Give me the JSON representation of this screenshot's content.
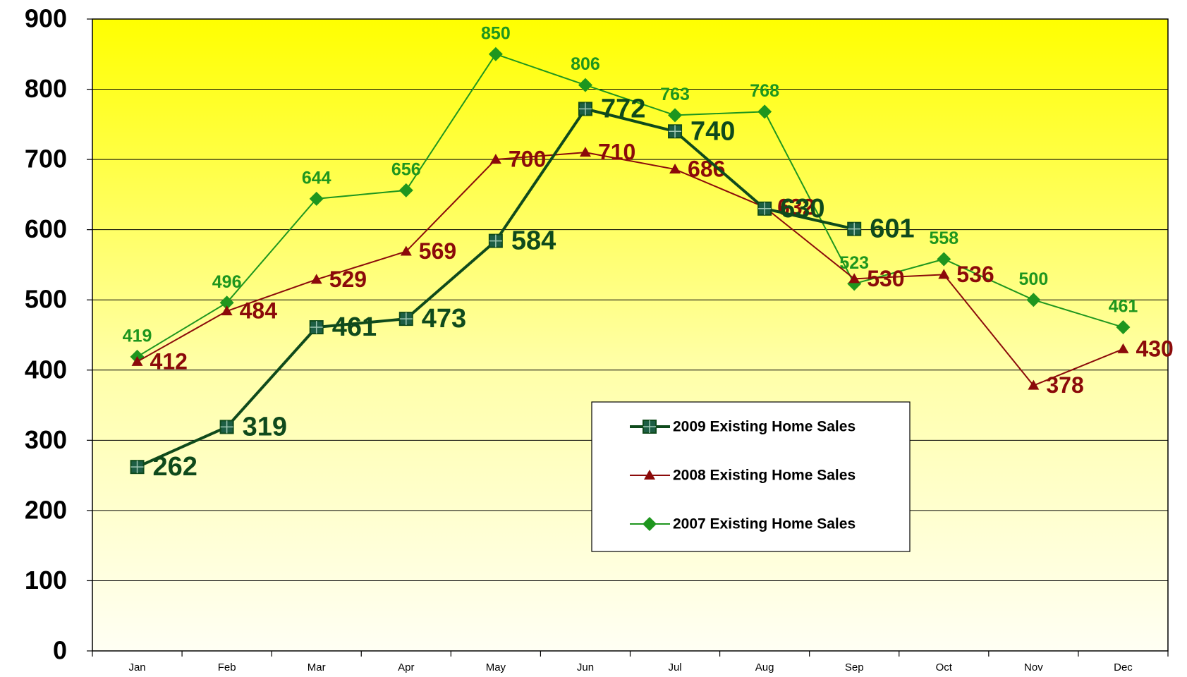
{
  "chart_data": {
    "type": "line",
    "categories": [
      "Jan",
      "Feb",
      "Mar",
      "Apr",
      "May",
      "Jun",
      "Jul",
      "Aug",
      "Sep",
      "Oct",
      "Nov",
      "Dec"
    ],
    "series": [
      {
        "name": "2009 Existing Home Sales",
        "color": "#0f4a1c",
        "marker": "square",
        "values": [
          262,
          319,
          461,
          473,
          584,
          772,
          740,
          630,
          601,
          null,
          null,
          null
        ]
      },
      {
        "name": "2008 Existing Home Sales",
        "color": "#8b0a0a",
        "marker": "triangle",
        "values": [
          412,
          484,
          529,
          569,
          700,
          710,
          686,
          632,
          530,
          536,
          378,
          430
        ]
      },
      {
        "name": "2007 Existing Home Sales",
        "color": "#1e961e",
        "marker": "diamond",
        "values": [
          419,
          496,
          644,
          656,
          850,
          806,
          763,
          768,
          523,
          558,
          500,
          461
        ]
      }
    ],
    "ylim": [
      0,
      900
    ],
    "yticks": [
      0,
      100,
      200,
      300,
      400,
      500,
      600,
      700,
      800,
      900
    ],
    "grid": true
  }
}
